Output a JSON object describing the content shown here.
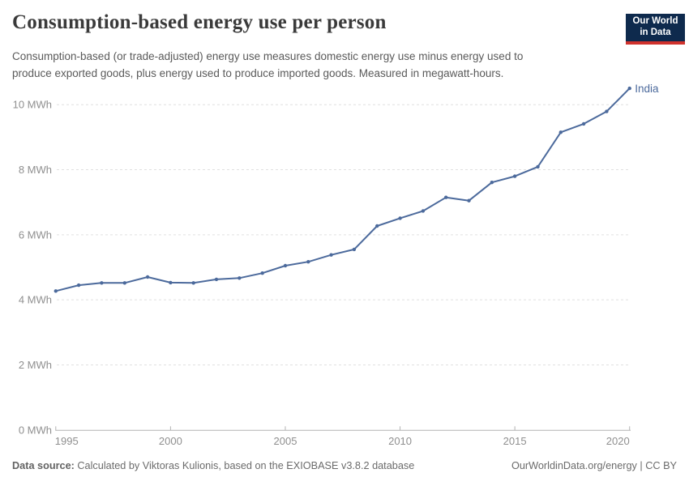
{
  "header": {
    "title": "Consumption-based energy use per person",
    "subtitle_line1": "Consumption-based (or trade-adjusted) energy use measures domestic energy use minus energy used to",
    "subtitle_line2": "produce exported goods, plus energy used to produce imported goods. Measured in megawatt-hours.",
    "logo_line1": "Our World",
    "logo_line2": "in Data"
  },
  "chart_data": {
    "type": "line",
    "title": "Consumption-based energy use per person",
    "unit": "MWh",
    "x": [
      1995,
      1996,
      1997,
      1998,
      1999,
      2000,
      2001,
      2002,
      2003,
      2004,
      2005,
      2006,
      2007,
      2008,
      2009,
      2010,
      2011,
      2012,
      2013,
      2014,
      2015,
      2016,
      2017,
      2018,
      2019,
      2020
    ],
    "series": [
      {
        "name": "India",
        "color": "#4C6A9C",
        "values": [
          4.27,
          4.45,
          4.52,
          4.52,
          4.7,
          4.53,
          4.52,
          4.63,
          4.67,
          4.82,
          5.05,
          5.17,
          5.38,
          5.55,
          6.27,
          6.51,
          6.73,
          7.15,
          7.05,
          7.61,
          7.8,
          8.09,
          9.15,
          9.41,
          9.79,
          10.5
        ]
      }
    ],
    "end_label": "India",
    "x_ticks": [
      1995,
      2000,
      2005,
      2010,
      2015,
      2020
    ],
    "y_ticks": [
      0,
      2,
      4,
      6,
      8,
      10
    ],
    "y_tick_labels": [
      "0 MWh",
      "2 MWh",
      "4 MWh",
      "6 MWh",
      "8 MWh",
      "10 MWh"
    ],
    "xlim": [
      1995,
      2020
    ],
    "ylim": [
      0,
      10.5
    ],
    "grid": "horizontal-dashed",
    "legend_position": "end-of-line-label"
  },
  "footer": {
    "source_label": "Data source:",
    "source_text": " Calculated by Viktoras Kulionis, based on the EXIOBASE v3.8.2 database",
    "link": "OurWorldinData.org/energy | CC BY"
  },
  "colors": {
    "series": "#4C6A9C",
    "grid": "#e0e0e0",
    "axis": "#b3b3b3",
    "tick_label": "#8f8f8f",
    "title": "#3a3a3a",
    "subtitle": "#5a5a5a",
    "footer": "#6b6b6b",
    "logo_bg": "#0e2a4d",
    "logo_stripe": "#d0322d"
  }
}
